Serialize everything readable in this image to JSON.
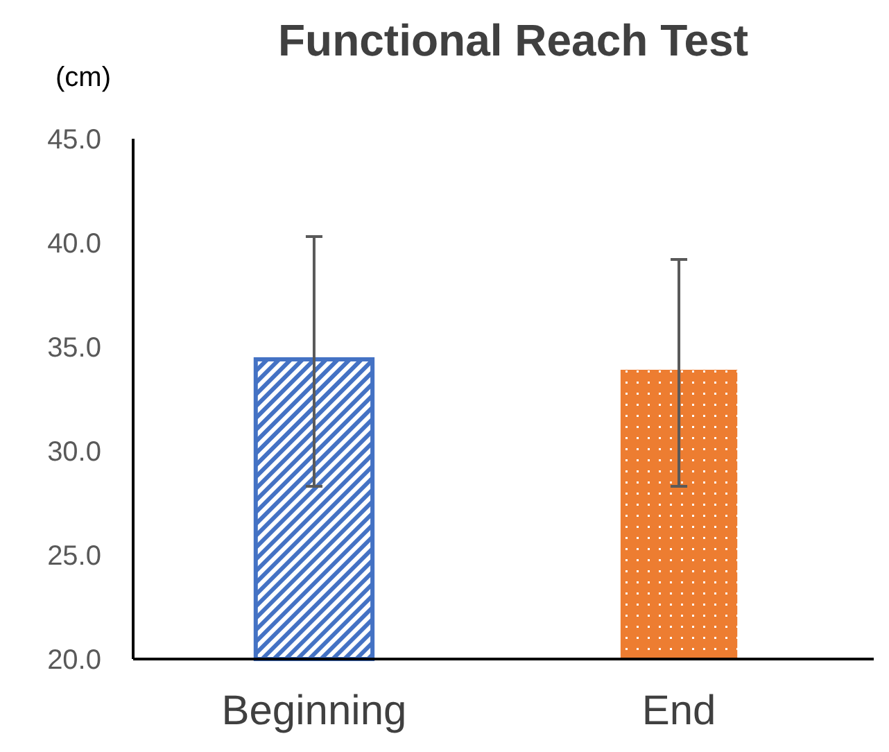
{
  "chart_data": {
    "type": "bar",
    "title": "Functional Reach Test",
    "ylabel": "(cm)",
    "categories": [
      "Beginning",
      "End"
    ],
    "values": [
      34.4,
      33.9
    ],
    "colors": [
      "#4472c4",
      "#ed7d31"
    ],
    "errors": [
      [
        28.3,
        40.3
      ],
      [
        28.3,
        39.2
      ]
    ],
    "ylim": [
      20,
      45
    ],
    "yticks": [
      {
        "value": 20,
        "label": "20.0"
      },
      {
        "value": 25,
        "label": "25.0"
      },
      {
        "value": 30,
        "label": "30.0"
      },
      {
        "value": 35,
        "label": "35.0"
      },
      {
        "value": 40,
        "label": "40.0"
      },
      {
        "value": 45,
        "label": "45.0"
      }
    ],
    "grid": false
  }
}
